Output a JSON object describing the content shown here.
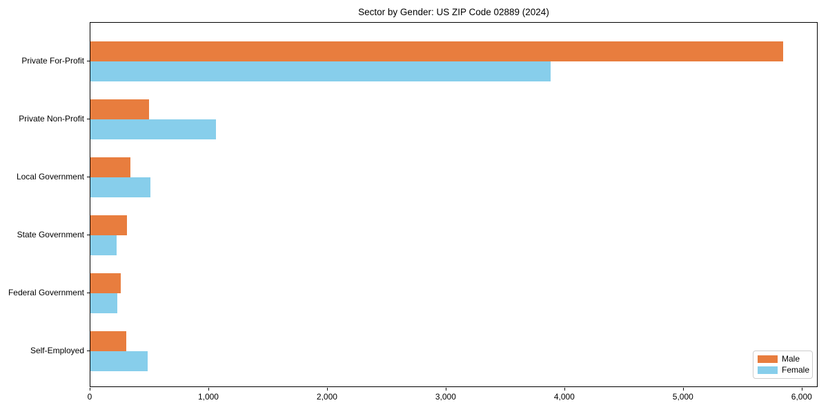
{
  "chart_data": {
    "type": "bar",
    "orientation": "horizontal",
    "title": "Sector by Gender: US ZIP Code 02889 (2024)",
    "categories": [
      "Private For-Profit",
      "Private Non-Profit",
      "Local Government",
      "State Government",
      "Federal Government",
      "Self-Employed"
    ],
    "series": [
      {
        "name": "Male",
        "color": "#e87d3e",
        "values": [
          5840,
          495,
          340,
          310,
          255,
          300
        ]
      },
      {
        "name": "Female",
        "color": "#87ceeb",
        "values": [
          3880,
          1060,
          505,
          220,
          225,
          485
        ]
      }
    ],
    "xlabel": "",
    "ylabel": "",
    "xlim": [
      0,
      6135
    ],
    "xticks": [
      0,
      1000,
      2000,
      3000,
      4000,
      5000,
      6000
    ],
    "xtick_labels": [
      "0",
      "1,000",
      "2,000",
      "3,000",
      "4,000",
      "5,000",
      "6,000"
    ],
    "grid": false,
    "legend": {
      "position": "lower-right",
      "entries": [
        "Male",
        "Female"
      ]
    }
  }
}
